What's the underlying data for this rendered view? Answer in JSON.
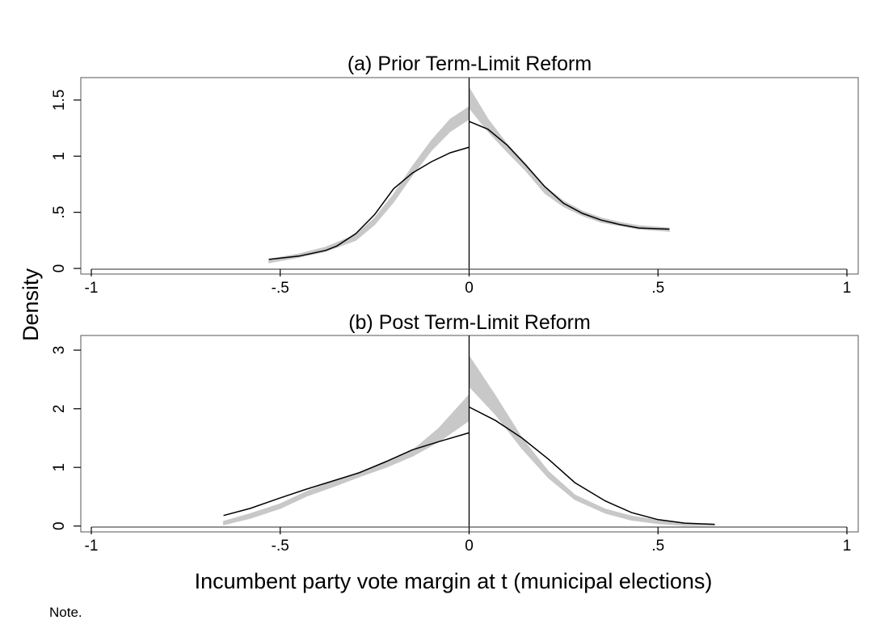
{
  "figure": {
    "ylabel": "Density",
    "xlabel": "Incumbent party vote margin at t (municipal elections)",
    "note": "Note.",
    "colors": {
      "line": "#000000",
      "band": "#c8c8c8",
      "frame": "#555555"
    }
  },
  "chart_data": [
    {
      "type": "line",
      "panel": "a",
      "title": "(a) Prior Term-Limit Reform",
      "xlim": [
        -1,
        1
      ],
      "ylim": [
        -0.05,
        1.7
      ],
      "xticks": [
        -1,
        -0.5,
        0,
        0.5,
        1
      ],
      "xtick_labels": [
        "-1",
        "-.5",
        "0",
        ".5",
        "1"
      ],
      "yticks": [
        0,
        0.5,
        1,
        1.5
      ],
      "ytick_labels": [
        "0",
        ".5",
        "1",
        "1.5"
      ],
      "vline_x": 0,
      "series": [
        {
          "role": "line-left",
          "points": [
            [
              -0.53,
              0.08
            ],
            [
              -0.45,
              0.11
            ],
            [
              -0.38,
              0.16
            ],
            [
              -0.35,
              0.2
            ],
            [
              -0.3,
              0.31
            ],
            [
              -0.25,
              0.48
            ],
            [
              -0.2,
              0.71
            ],
            [
              -0.15,
              0.85
            ],
            [
              -0.1,
              0.95
            ],
            [
              -0.05,
              1.03
            ],
            [
              0,
              1.08
            ]
          ]
        },
        {
          "role": "line-right",
          "points": [
            [
              0,
              1.31
            ],
            [
              0.05,
              1.24
            ],
            [
              0.1,
              1.1
            ],
            [
              0.15,
              0.92
            ],
            [
              0.2,
              0.73
            ],
            [
              0.25,
              0.58
            ],
            [
              0.3,
              0.49
            ],
            [
              0.35,
              0.43
            ],
            [
              0.4,
              0.39
            ],
            [
              0.45,
              0.36
            ],
            [
              0.53,
              0.35
            ]
          ]
        },
        {
          "role": "band-left",
          "points": [
            [
              -0.53,
              0.05,
              0.08
            ],
            [
              -0.45,
              0.1,
              0.13
            ],
            [
              -0.38,
              0.15,
              0.19
            ],
            [
              -0.3,
              0.25,
              0.3
            ],
            [
              -0.25,
              0.39,
              0.45
            ],
            [
              -0.2,
              0.59,
              0.66
            ],
            [
              -0.15,
              0.83,
              0.91
            ],
            [
              -0.1,
              1.05,
              1.14
            ],
            [
              -0.05,
              1.22,
              1.33
            ],
            [
              0,
              1.33,
              1.44
            ]
          ]
        },
        {
          "role": "band-right",
          "points": [
            [
              0,
              1.43,
              1.61
            ],
            [
              0.05,
              1.22,
              1.33
            ],
            [
              0.1,
              1.04,
              1.11
            ],
            [
              0.15,
              0.87,
              0.93
            ],
            [
              0.2,
              0.67,
              0.73
            ],
            [
              0.25,
              0.55,
              0.6
            ],
            [
              0.3,
              0.47,
              0.51
            ],
            [
              0.35,
              0.41,
              0.45
            ],
            [
              0.4,
              0.38,
              0.41
            ],
            [
              0.45,
              0.35,
              0.38
            ],
            [
              0.53,
              0.33,
              0.36
            ]
          ]
        }
      ]
    },
    {
      "type": "line",
      "panel": "b",
      "title": "(b) Post Term-Limit Reform",
      "xlim": [
        -1,
        1
      ],
      "ylim": [
        -0.1,
        3.25
      ],
      "xticks": [
        -1,
        -0.5,
        0,
        0.5,
        1
      ],
      "xtick_labels": [
        "-1",
        "-.5",
        "0",
        ".5",
        "1"
      ],
      "yticks": [
        0,
        1,
        2,
        3
      ],
      "ytick_labels": [
        "0",
        "1",
        "2",
        "3"
      ],
      "vline_x": 0,
      "series": [
        {
          "role": "line-left",
          "points": [
            [
              -0.65,
              0.18
            ],
            [
              -0.58,
              0.3
            ],
            [
              -0.5,
              0.48
            ],
            [
              -0.43,
              0.63
            ],
            [
              -0.36,
              0.77
            ],
            [
              -0.29,
              0.91
            ],
            [
              -0.22,
              1.1
            ],
            [
              -0.15,
              1.3
            ],
            [
              -0.08,
              1.44
            ],
            [
              0,
              1.59
            ]
          ]
        },
        {
          "role": "line-right",
          "points": [
            [
              0,
              2.03
            ],
            [
              0.07,
              1.8
            ],
            [
              0.14,
              1.5
            ],
            [
              0.21,
              1.14
            ],
            [
              0.28,
              0.74
            ],
            [
              0.36,
              0.43
            ],
            [
              0.43,
              0.23
            ],
            [
              0.5,
              0.11
            ],
            [
              0.57,
              0.05
            ],
            [
              0.65,
              0.03
            ]
          ]
        },
        {
          "role": "band-left",
          "points": [
            [
              -0.65,
              0.02,
              0.08
            ],
            [
              -0.58,
              0.13,
              0.21
            ],
            [
              -0.5,
              0.3,
              0.38
            ],
            [
              -0.43,
              0.51,
              0.59
            ],
            [
              -0.36,
              0.67,
              0.76
            ],
            [
              -0.29,
              0.84,
              0.92
            ],
            [
              -0.22,
              1.0,
              1.09
            ],
            [
              -0.15,
              1.19,
              1.29
            ],
            [
              -0.08,
              1.44,
              1.67
            ],
            [
              0,
              1.8,
              2.24
            ]
          ]
        },
        {
          "role": "band-right",
          "points": [
            [
              0,
              2.38,
              2.9
            ],
            [
              0.07,
              1.9,
              2.22
            ],
            [
              0.14,
              1.32,
              1.5
            ],
            [
              0.21,
              0.82,
              0.93
            ],
            [
              0.28,
              0.45,
              0.53
            ],
            [
              0.36,
              0.22,
              0.29
            ],
            [
              0.43,
              0.1,
              0.17
            ],
            [
              0.5,
              0.04,
              0.1
            ],
            [
              0.57,
              0.01,
              0.05
            ],
            [
              0.65,
              0.01,
              0.03
            ]
          ]
        }
      ]
    }
  ]
}
